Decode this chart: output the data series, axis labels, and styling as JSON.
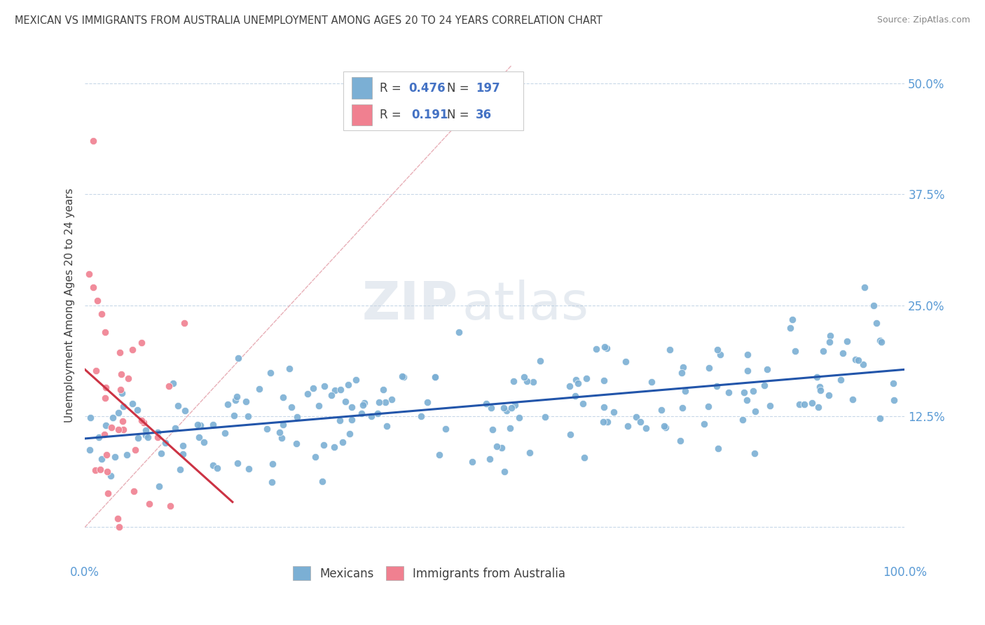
{
  "title": "MEXICAN VS IMMIGRANTS FROM AUSTRALIA UNEMPLOYMENT AMONG AGES 20 TO 24 YEARS CORRELATION CHART",
  "source": "Source: ZipAtlas.com",
  "ylabel": "Unemployment Among Ages 20 to 24 years",
  "xlim": [
    0.0,
    1.0
  ],
  "ylim": [
    -0.04,
    0.54
  ],
  "yticks": [
    0.0,
    0.125,
    0.25,
    0.375,
    0.5
  ],
  "ytick_labels": [
    "",
    "12.5%",
    "25.0%",
    "37.5%",
    "50.0%"
  ],
  "xticks": [
    0.0,
    0.25,
    0.5,
    0.75,
    1.0
  ],
  "xtick_labels": [
    "0.0%",
    "",
    "",
    "",
    "100.0%"
  ],
  "mexicans_R": 0.476,
  "mexicans_N": 197,
  "australia_R": 0.191,
  "australia_N": 36,
  "scatter_color_mexicans": "#7bafd4",
  "scatter_color_australia": "#f08090",
  "line_color_mexicans": "#2255aa",
  "line_color_australia": "#cc3344",
  "diagonal_color": "#e8b0b8",
  "watermark_zip": "ZIP",
  "watermark_atlas": "atlas",
  "background_color": "#ffffff",
  "grid_color": "#c8d8e8",
  "title_color": "#404040",
  "axis_label_color": "#404040",
  "tick_label_color": "#5b9bd5",
  "legend_box_color": "#aaccee",
  "legend_text_color": "#404040",
  "legend_number_color": "#4472c4",
  "seed": 42
}
